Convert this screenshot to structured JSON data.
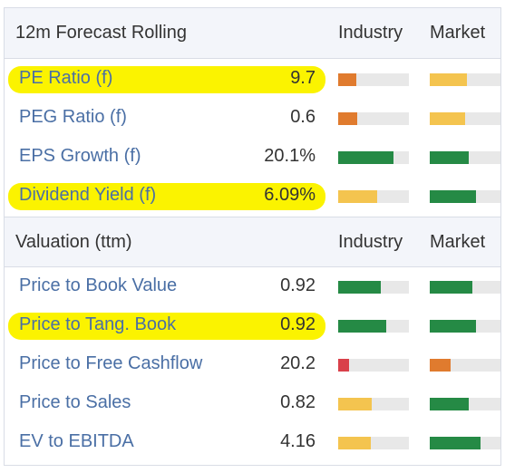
{
  "forecast": {
    "title": "12m Forecast Rolling",
    "col_industry": "Industry",
    "col_market": "Market",
    "rows": [
      {
        "label": "PE Ratio (f)",
        "value": "9.7",
        "highlight": true,
        "industry": {
          "level": 0.25,
          "color": "#e07b2e"
        },
        "market": {
          "level": 0.52,
          "color": "#f4c44f"
        }
      },
      {
        "label": "PEG Ratio (f)",
        "value": "0.6",
        "highlight": false,
        "industry": {
          "level": 0.27,
          "color": "#e07b2e"
        },
        "market": {
          "level": 0.5,
          "color": "#f4c44f"
        }
      },
      {
        "label": "EPS Growth (f)",
        "value": "20.1%",
        "highlight": false,
        "industry": {
          "level": 0.78,
          "color": "#258a45"
        },
        "market": {
          "level": 0.55,
          "color": "#258a45"
        }
      },
      {
        "label": "Dividend Yield (f)",
        "value": "6.09%",
        "highlight": true,
        "industry": {
          "level": 0.55,
          "color": "#f4c44f"
        },
        "market": {
          "level": 0.65,
          "color": "#258a45"
        }
      }
    ]
  },
  "valuation": {
    "title": "Valuation (ttm)",
    "col_industry": "Industry",
    "col_market": "Market",
    "rows": [
      {
        "label": "Price to Book Value",
        "value": "0.92",
        "highlight": false,
        "industry": {
          "level": 0.6,
          "color": "#258a45"
        },
        "market": {
          "level": 0.6,
          "color": "#258a45"
        }
      },
      {
        "label": "Price to Tang. Book",
        "value": "0.92",
        "highlight": true,
        "industry": {
          "level": 0.68,
          "color": "#258a45"
        },
        "market": {
          "level": 0.65,
          "color": "#258a45"
        }
      },
      {
        "label": "Price to Free Cashflow",
        "value": "20.2",
        "highlight": false,
        "industry": {
          "level": 0.16,
          "color": "#d9404a"
        },
        "market": {
          "level": 0.3,
          "color": "#e07b2e"
        }
      },
      {
        "label": "Price to Sales",
        "value": "0.82",
        "highlight": false,
        "industry": {
          "level": 0.48,
          "color": "#f4c44f"
        },
        "market": {
          "level": 0.55,
          "color": "#258a45"
        }
      },
      {
        "label": "EV to EBITDA",
        "value": "4.16",
        "highlight": false,
        "industry": {
          "level": 0.46,
          "color": "#f4c44f"
        },
        "market": {
          "level": 0.72,
          "color": "#258a45"
        }
      }
    ]
  }
}
